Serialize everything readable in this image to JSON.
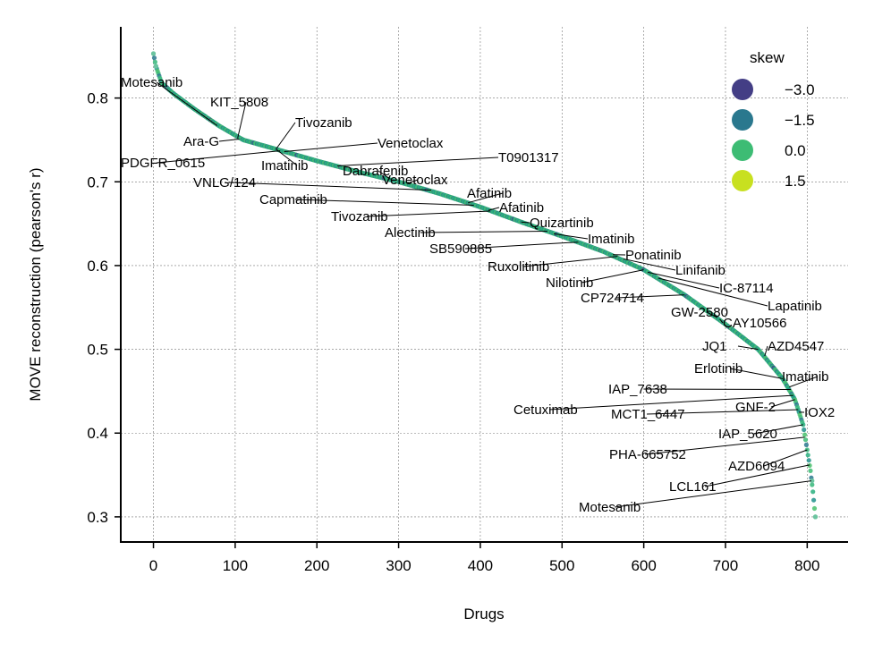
{
  "chart_data": {
    "type": "scatter",
    "title": "",
    "xlabel": "Drugs",
    "ylabel": "MOVE reconstruction (pearson's r)",
    "xlim": [
      -40,
      850
    ],
    "ylim": [
      0.27,
      0.885
    ],
    "xticks": [
      0,
      100,
      200,
      300,
      400,
      500,
      600,
      700,
      800
    ],
    "yticks": [
      0.3,
      0.4,
      0.5,
      0.6,
      0.7,
      0.8
    ],
    "grid": true,
    "legend": {
      "title": "skew",
      "placement": "top-right",
      "entries": [
        {
          "label": "−3.0",
          "color": "#433e85"
        },
        {
          "label": "−1.5",
          "color": "#2a788e"
        },
        {
          "label": "0.0",
          "color": "#3dbc74"
        },
        {
          "label": "1.5",
          "color": "#c8e020"
        }
      ]
    },
    "curve_knots": [
      [
        0,
        0.853
      ],
      [
        3,
        0.838
      ],
      [
        10,
        0.818
      ],
      [
        25,
        0.805
      ],
      [
        50,
        0.787
      ],
      [
        80,
        0.767
      ],
      [
        110,
        0.75
      ],
      [
        150,
        0.739
      ],
      [
        200,
        0.725
      ],
      [
        250,
        0.712
      ],
      [
        300,
        0.7
      ],
      [
        350,
        0.686
      ],
      [
        400,
        0.67
      ],
      [
        450,
        0.652
      ],
      [
        500,
        0.635
      ],
      [
        550,
        0.617
      ],
      [
        600,
        0.595
      ],
      [
        650,
        0.565
      ],
      [
        700,
        0.53
      ],
      [
        740,
        0.5
      ],
      [
        770,
        0.465
      ],
      [
        785,
        0.44
      ],
      [
        795,
        0.41
      ],
      [
        800,
        0.38
      ],
      [
        804,
        0.355
      ],
      [
        807,
        0.33
      ],
      [
        810,
        0.3
      ]
    ],
    "n_points": 811,
    "annotations": [
      {
        "label": "Motesanib",
        "x": 78,
        "y": 0.767
      },
      {
        "label": "KIT_5808",
        "x": 103,
        "y": 0.752
      },
      {
        "label": "Tivozanib",
        "x": 150,
        "y": 0.739
      },
      {
        "label": "Ara-G",
        "x": 105,
        "y": 0.751
      },
      {
        "label": "Venetoclax",
        "x": 160,
        "y": 0.736
      },
      {
        "label": "T0901317",
        "x": 225,
        "y": 0.719
      },
      {
        "label": "PDGFR_0615",
        "x": 155,
        "y": 0.737
      },
      {
        "label": "Imatinib",
        "x": 150,
        "y": 0.739
      },
      {
        "label": "Dabrafenib",
        "x": 290,
        "y": 0.703
      },
      {
        "label": "Venetoclax",
        "x": 310,
        "y": 0.698
      },
      {
        "label": "VNLG/124",
        "x": 340,
        "y": 0.69
      },
      {
        "label": "Afatinib",
        "x": 385,
        "y": 0.675
      },
      {
        "label": "Capmatinib",
        "x": 392,
        "y": 0.672
      },
      {
        "label": "Afatinib",
        "x": 410,
        "y": 0.666
      },
      {
        "label": "Tivozanib",
        "x": 412,
        "y": 0.665
      },
      {
        "label": "Quizartinib",
        "x": 450,
        "y": 0.652
      },
      {
        "label": "Alectinib",
        "x": 482,
        "y": 0.641
      },
      {
        "label": "Imatinib",
        "x": 490,
        "y": 0.638
      },
      {
        "label": "SB590885",
        "x": 520,
        "y": 0.628
      },
      {
        "label": "Ponatinib",
        "x": 562,
        "y": 0.613
      },
      {
        "label": "Ruxolitinib",
        "x": 568,
        "y": 0.611
      },
      {
        "label": "Linifanib",
        "x": 575,
        "y": 0.608
      },
      {
        "label": "Nilotinib",
        "x": 600,
        "y": 0.595
      },
      {
        "label": "IC-87114",
        "x": 605,
        "y": 0.592
      },
      {
        "label": "Lapatinib",
        "x": 618,
        "y": 0.585
      },
      {
        "label": "CP724714",
        "x": 650,
        "y": 0.565
      },
      {
        "label": "GW-2580",
        "x": 690,
        "y": 0.538
      },
      {
        "label": "CAY10566",
        "x": 693,
        "y": 0.536
      },
      {
        "label": "JQ1",
        "x": 740,
        "y": 0.5
      },
      {
        "label": "AZD4547",
        "x": 748,
        "y": 0.492
      },
      {
        "label": "Erlotinib",
        "x": 770,
        "y": 0.465
      },
      {
        "label": "Imatinib",
        "x": 778,
        "y": 0.455
      },
      {
        "label": "IAP_7638",
        "x": 780,
        "y": 0.452
      },
      {
        "label": "Cetuximab",
        "x": 783,
        "y": 0.445
      },
      {
        "label": "GNF-2",
        "x": 785,
        "y": 0.44
      },
      {
        "label": "MCT1_6447",
        "x": 789,
        "y": 0.428
      },
      {
        "label": "IOX2",
        "x": 790,
        "y": 0.425
      },
      {
        "label": "IAP_5620",
        "x": 795,
        "y": 0.41
      },
      {
        "label": "PHA-665752",
        "x": 797,
        "y": 0.395
      },
      {
        "label": "AZD6094",
        "x": 800,
        "y": 0.38
      },
      {
        "label": "LCL161",
        "x": 803,
        "y": 0.362
      },
      {
        "label": "Motesanib",
        "x": 805,
        "y": 0.343
      }
    ]
  }
}
